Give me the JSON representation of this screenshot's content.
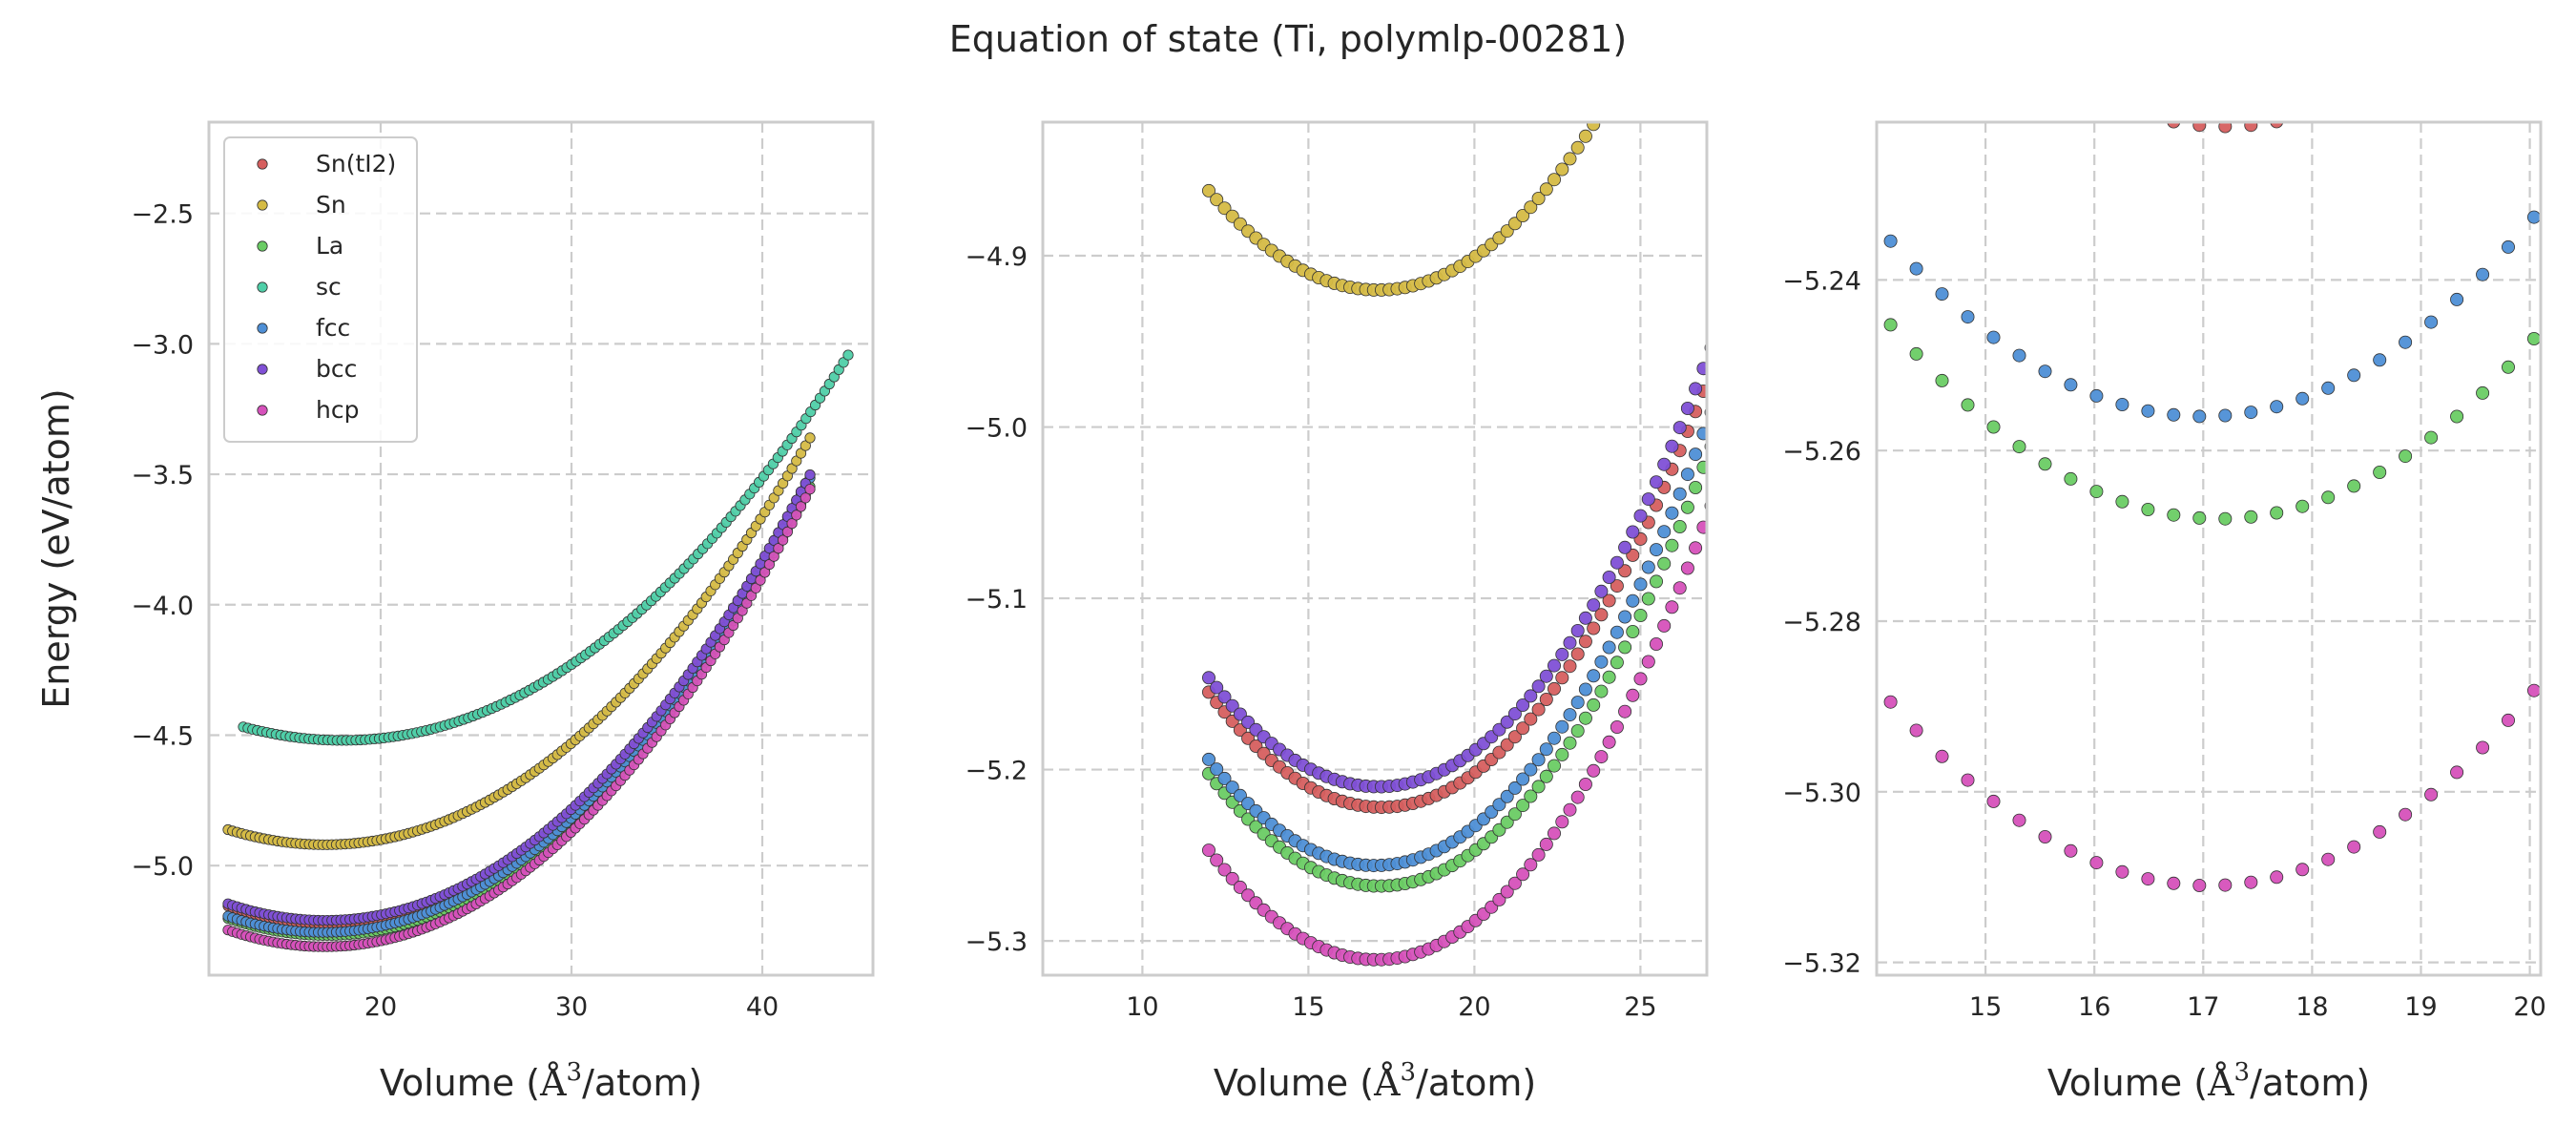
{
  "chart_data": {
    "type": "scatter",
    "title": "Equation of state (Ti, polymlp-00281)",
    "ylabel": "Energy (eV/atom)",
    "legend_position": "top-left",
    "legend_panel": 0,
    "grid": true,
    "series": [
      {
        "name": "Sn(tI2)",
        "color": "#d65f5f",
        "v0": 17.2,
        "e0": -5.222,
        "b": 0.00252,
        "c": 6.6e-06,
        "vmin": 12.0,
        "vmax": 42.5,
        "n": 130
      },
      {
        "name": "Sn",
        "color": "#d5bb44",
        "v0": 17.1,
        "e0": -4.92,
        "b": 0.00226,
        "c": 6.2e-06,
        "vmin": 12.0,
        "vmax": 42.5,
        "n": 130
      },
      {
        "name": "La",
        "color": "#6acc64",
        "v0": 17.15,
        "e0": -5.268,
        "b": 0.00251,
        "c": 6.6e-06,
        "vmin": 12.0,
        "vmax": 42.5,
        "n": 130
      },
      {
        "name": "sc",
        "color": "#4fcfa8",
        "v0": 18.0,
        "e0": -4.52,
        "b": 0.00195,
        "c": 5.8e-06,
        "vmin": 12.8,
        "vmax": 44.5,
        "n": 130
      },
      {
        "name": "fcc",
        "color": "#4e8fd6",
        "v0": 17.0,
        "e0": -5.256,
        "b": 0.00251,
        "c": 6.6e-06,
        "vmin": 12.0,
        "vmax": 42.5,
        "n": 130
      },
      {
        "name": "bcc",
        "color": "#8050d6",
        "v0": 17.1,
        "e0": -5.21,
        "b": 0.00248,
        "c": 6.6e-06,
        "vmin": 12.0,
        "vmax": 42.5,
        "n": 130
      },
      {
        "name": "hcp",
        "color": "#d651bb",
        "v0": 17.05,
        "e0": -5.311,
        "b": 0.00254,
        "c": 6.6e-06,
        "vmin": 12.0,
        "vmax": 42.5,
        "n": 130
      }
    ],
    "panels": [
      {
        "xlabel_prefix": "Volume (",
        "xlabel_unit": "Å",
        "xlabel_exp": "3",
        "xlabel_suffix": "/atom)",
        "show_ylabel": true,
        "xlim": [
          11.0,
          45.8
        ],
        "ylim": [
          -5.42,
          -2.15
        ],
        "xticks": [
          20,
          30,
          40
        ],
        "xtick_labels": [
          "20",
          "30",
          "40"
        ],
        "yticks": [
          -5.0,
          -4.5,
          -4.0,
          -3.5,
          -3.0,
          -2.5
        ],
        "ytick_labels": [
          "−5.0",
          "−4.5",
          "−4.0",
          "−3.5",
          "−3.0",
          "−2.5"
        ],
        "marker": "small"
      },
      {
        "xlabel_prefix": "Volume (",
        "xlabel_unit": "Å",
        "xlabel_exp": "3",
        "xlabel_suffix": "/atom)",
        "show_ylabel": false,
        "xlim": [
          7.0,
          27.0
        ],
        "ylim": [
          -5.32,
          -4.822
        ],
        "xticks": [
          10,
          15,
          20,
          25
        ],
        "xtick_labels": [
          "10",
          "15",
          "20",
          "25"
        ],
        "yticks": [
          -5.3,
          -5.2,
          -5.1,
          -5.0,
          -4.9
        ],
        "ytick_labels": [
          "−5.3",
          "−5.2",
          "−5.1",
          "−5.0",
          "−4.9"
        ],
        "marker": "medium"
      },
      {
        "xlabel_prefix": "Volume (",
        "xlabel_unit": "Å",
        "xlabel_exp": "3",
        "xlabel_suffix": "/atom)",
        "show_ylabel": false,
        "xlim": [
          14.0,
          20.1
        ],
        "ylim": [
          -5.3215,
          -5.2215
        ],
        "xticks": [
          15,
          16,
          17,
          18,
          19,
          20
        ],
        "xtick_labels": [
          "15",
          "16",
          "17",
          "18",
          "19",
          "20"
        ],
        "yticks": [
          -5.32,
          -5.3,
          -5.28,
          -5.26,
          -5.24
        ],
        "ytick_labels": [
          "−5.32",
          "−5.30",
          "−5.28",
          "−5.26",
          "−5.24"
        ],
        "marker": "medium"
      }
    ]
  }
}
